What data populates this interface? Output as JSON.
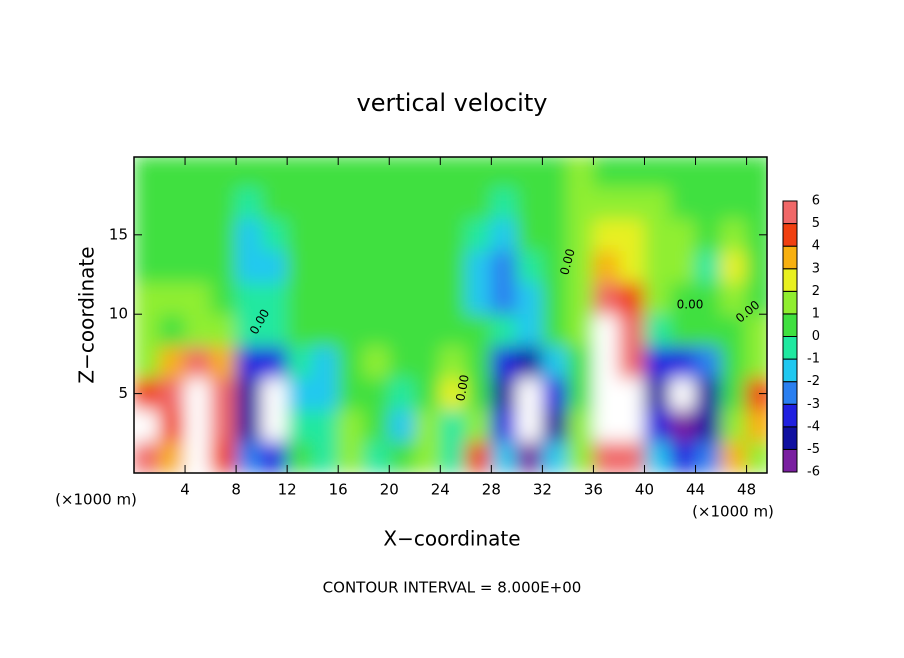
{
  "chart_data": {
    "type": "contour",
    "title": "vertical velocity",
    "xlabel": "X−coordinate",
    "ylabel": "Z−coordinate",
    "xunit": "(×1000 m)",
    "yunit": "(×1000 m)",
    "footer": "CONTOUR INTERVAL = 8.000E+00",
    "contour_labels": [
      "0.00",
      "0.00",
      "0.00",
      "0.00",
      "0.00"
    ],
    "xlim": [
      0,
      49.6
    ],
    "ylim": [
      0,
      19.9
    ],
    "xticks": [
      4,
      8,
      12,
      16,
      20,
      24,
      28,
      32,
      36,
      40,
      44,
      48
    ],
    "yticks": [
      5,
      10,
      15
    ],
    "x": [
      1,
      3,
      5,
      7,
      9,
      11,
      13,
      15,
      17,
      19,
      21,
      23,
      25,
      27,
      29,
      31,
      33,
      35,
      37,
      39,
      41,
      43,
      45,
      47,
      49
    ],
    "y": [
      1,
      3,
      5,
      7,
      9,
      11,
      13,
      15,
      17,
      19
    ],
    "z": [
      [
        5,
        3,
        7,
        4,
        -3,
        -4,
        0,
        -1,
        1,
        -1,
        0,
        1,
        -1,
        4,
        -2,
        -6,
        -2,
        1,
        6,
        5,
        -2,
        -4,
        -3,
        3,
        1
      ],
      [
        8,
        4,
        8,
        5,
        -5,
        -8,
        -1,
        -1,
        1,
        0,
        -2,
        1,
        -1,
        1,
        -4,
        -8,
        -5,
        1,
        8,
        7,
        -4,
        -6,
        -5,
        1,
        3
      ],
      [
        4,
        6,
        8,
        5,
        -5,
        -8,
        -2,
        -2,
        0,
        0,
        -1,
        0,
        2,
        0,
        -5,
        -8,
        -4,
        0,
        8,
        8,
        -5,
        -7,
        -5,
        0,
        4
      ],
      [
        1,
        3,
        5,
        3,
        -4,
        -4,
        -1,
        -2,
        0,
        1,
        0,
        0,
        1,
        0,
        -4,
        -5,
        -2,
        0,
        7,
        6,
        -4,
        -4,
        -3,
        0,
        1
      ],
      [
        1,
        0,
        1,
        1,
        -1,
        -1,
        0,
        0,
        0,
        0,
        0,
        0,
        0,
        0,
        -1,
        -2,
        0,
        1,
        7,
        6,
        -1,
        0,
        0,
        0,
        1
      ],
      [
        1,
        1,
        1,
        0,
        -1,
        -1,
        0,
        0,
        0,
        0,
        0,
        0,
        0,
        -2,
        -3,
        -2,
        0,
        1,
        5,
        4,
        1,
        0,
        0,
        1,
        0
      ],
      [
        0,
        0,
        0,
        0,
        -2,
        -2,
        0,
        0,
        0,
        0,
        0,
        0,
        0,
        -2,
        -3,
        -1,
        0,
        1,
        3,
        2,
        1,
        1,
        -1,
        2,
        0
      ],
      [
        0,
        0,
        0,
        0,
        -2,
        -1,
        0,
        0,
        0,
        0,
        0,
        0,
        0,
        -1,
        -2,
        0,
        0,
        1,
        2,
        2,
        1,
        1,
        0,
        1,
        0
      ],
      [
        0,
        0,
        0,
        0,
        -1,
        0,
        0,
        0,
        0,
        0,
        0,
        0,
        0,
        0,
        -1,
        0,
        0,
        1,
        1,
        1,
        1,
        0,
        0,
        0,
        0
      ],
      [
        0,
        0,
        0,
        0,
        0,
        0,
        0,
        0,
        0,
        0,
        0,
        0,
        0,
        0,
        0,
        0,
        0,
        1,
        0,
        0,
        0,
        0,
        0,
        0,
        0
      ]
    ],
    "colorbar": {
      "levels": [
        -6,
        -5,
        -4,
        -3,
        -2,
        -1,
        0,
        1,
        2,
        3,
        4,
        5,
        6
      ],
      "colors": [
        "#7a1fa0",
        "#1010a0",
        "#2020e0",
        "#2a7ff0",
        "#20c8f0",
        "#20e8a0",
        "#40e040",
        "#90ee30",
        "#e8f020",
        "#f8b010",
        "#f04010",
        "#f06868"
      ],
      "outside_color": "#ffffff"
    }
  }
}
